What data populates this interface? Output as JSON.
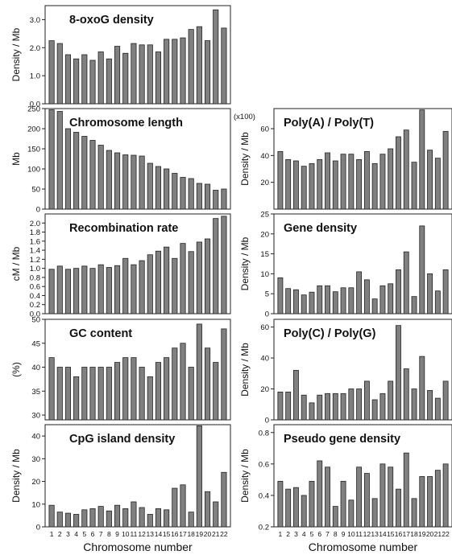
{
  "colors": {
    "bar_fill": "#808080",
    "bar_stroke": "#222222",
    "frame": "#222222",
    "text": "#111111"
  },
  "chart_data": [
    {
      "id": "oxog",
      "type": "bar",
      "title": "8-oxoG density",
      "ylabel": "Density / Mb",
      "ylim": [
        0,
        3.5
      ],
      "yticks": [
        "0.0",
        "1.0",
        "2.0",
        "3.0"
      ],
      "ytick_values": [
        0,
        1,
        2,
        3
      ],
      "categories": [
        "1",
        "2",
        "3",
        "4",
        "5",
        "6",
        "7",
        "8",
        "9",
        "10",
        "11",
        "12",
        "13",
        "14",
        "15",
        "16",
        "17",
        "18",
        "19",
        "20",
        "21",
        "22"
      ],
      "values": [
        2.25,
        2.15,
        1.75,
        1.6,
        1.75,
        1.55,
        1.85,
        1.6,
        2.05,
        1.8,
        2.15,
        2.1,
        2.1,
        1.85,
        2.3,
        2.3,
        2.35,
        2.65,
        2.75,
        2.25,
        3.35,
        2.7
      ]
    },
    {
      "id": "length",
      "type": "bar",
      "title": "Chromosome length",
      "ylabel": "Mb",
      "ylim": [
        0,
        250
      ],
      "yticks": [
        "0",
        "50",
        "100",
        "150",
        "200",
        "250"
      ],
      "ytick_values": [
        0,
        50,
        100,
        150,
        200,
        250
      ],
      "categories": [
        "1",
        "2",
        "3",
        "4",
        "5",
        "6",
        "7",
        "8",
        "9",
        "10",
        "11",
        "12",
        "13",
        "14",
        "15",
        "16",
        "17",
        "18",
        "19",
        "20",
        "21",
        "22"
      ],
      "values": [
        247,
        243,
        200,
        191,
        181,
        171,
        159,
        146,
        140,
        135,
        134,
        132,
        114,
        106,
        100,
        89,
        79,
        76,
        64,
        62,
        47,
        50
      ]
    },
    {
      "id": "recomb",
      "type": "bar",
      "title": "Recombination rate",
      "ylabel": "cM / Mb",
      "ylim": [
        0,
        2.2
      ],
      "yticks": [
        "0.0",
        "0.2",
        "0.4",
        "0.6",
        "0.8",
        "1.0",
        "1.2",
        "1.4",
        "1.6",
        "1.8",
        "2.0"
      ],
      "ytick_values": [
        0,
        0.2,
        0.4,
        0.6,
        0.8,
        1.0,
        1.2,
        1.4,
        1.6,
        1.8,
        2.0
      ],
      "categories": [
        "1",
        "2",
        "3",
        "4",
        "5",
        "6",
        "7",
        "8",
        "9",
        "10",
        "11",
        "12",
        "13",
        "14",
        "15",
        "16",
        "17",
        "18",
        "19",
        "20",
        "21",
        "22"
      ],
      "values": [
        0.98,
        1.05,
        0.98,
        1.0,
        1.05,
        1.0,
        1.08,
        1.02,
        1.06,
        1.22,
        1.08,
        1.17,
        1.3,
        1.38,
        1.47,
        1.22,
        1.55,
        1.37,
        1.58,
        1.65,
        2.1,
        2.15
      ]
    },
    {
      "id": "gc",
      "type": "bar",
      "title": "GC content",
      "ylabel": "(%)",
      "ylim": [
        29,
        50
      ],
      "yticks": [
        "30",
        "35",
        "40",
        "45",
        "50"
      ],
      "ytick_values": [
        30,
        35,
        40,
        45,
        50
      ],
      "categories": [
        "1",
        "2",
        "3",
        "4",
        "5",
        "6",
        "7",
        "8",
        "9",
        "10",
        "11",
        "12",
        "13",
        "14",
        "15",
        "16",
        "17",
        "18",
        "19",
        "20",
        "21",
        "22"
      ],
      "values": [
        42,
        40,
        40,
        38,
        40,
        40,
        40,
        40,
        41,
        42,
        42,
        40,
        38,
        41,
        42,
        44,
        45,
        40,
        49,
        44,
        41,
        48
      ]
    },
    {
      "id": "cpg",
      "type": "bar",
      "title": "CpG island density",
      "ylabel": "Density / Mb",
      "ylim": [
        0,
        45
      ],
      "yticks": [
        "0",
        "10",
        "20",
        "30",
        "40"
      ],
      "ytick_values": [
        0,
        10,
        20,
        30,
        40
      ],
      "categories": [
        "1",
        "2",
        "3",
        "4",
        "5",
        "6",
        "7",
        "8",
        "9",
        "10",
        "11",
        "12",
        "13",
        "14",
        "15",
        "16",
        "17",
        "18",
        "19",
        "20",
        "21",
        "22"
      ],
      "values": [
        9.5,
        6.5,
        6,
        5.5,
        7.5,
        8,
        9,
        7,
        9.5,
        8,
        11,
        8.5,
        5.5,
        8,
        7.5,
        17,
        18.5,
        6.5,
        44.5,
        15.5,
        11,
        24
      ]
    },
    {
      "id": "polyat",
      "type": "bar",
      "title": "Poly(A) / Poly(T)",
      "ylabel": "Density / Mb",
      "ylim": [
        0,
        75
      ],
      "scale_note": "(x100)",
      "yticks": [
        "20",
        "40",
        "60"
      ],
      "ytick_values": [
        20,
        40,
        60
      ],
      "categories": [
        "1",
        "2",
        "3",
        "4",
        "5",
        "6",
        "7",
        "8",
        "9",
        "10",
        "11",
        "12",
        "13",
        "14",
        "15",
        "16",
        "17",
        "18",
        "19",
        "20",
        "21",
        "22"
      ],
      "values": [
        43,
        37,
        36,
        32,
        34,
        37,
        42,
        36,
        41,
        41,
        37,
        43,
        34,
        41,
        45,
        54,
        59,
        35,
        74,
        44,
        38,
        58
      ]
    },
    {
      "id": "gene",
      "type": "bar",
      "title": "Gene density",
      "ylabel": "Density / Mb",
      "ylim": [
        0,
        25
      ],
      "yticks": [
        "0",
        "5",
        "10",
        "15",
        "20",
        "25"
      ],
      "ytick_values": [
        0,
        5,
        10,
        15,
        20,
        25
      ],
      "categories": [
        "1",
        "2",
        "3",
        "4",
        "5",
        "6",
        "7",
        "8",
        "9",
        "10",
        "11",
        "12",
        "13",
        "14",
        "15",
        "16",
        "17",
        "18",
        "19",
        "20",
        "21",
        "22"
      ],
      "values": [
        9,
        6.3,
        6,
        4.7,
        5.4,
        7,
        7,
        5.5,
        6.5,
        6.5,
        10.5,
        8.5,
        3.7,
        7,
        7.5,
        11,
        15.5,
        4.3,
        22,
        10,
        5.7,
        11
      ]
    },
    {
      "id": "polycg",
      "type": "bar",
      "title": "Poly(C) / Poly(G)",
      "ylabel": "Density / Mb",
      "ylim": [
        0,
        65
      ],
      "yticks": [
        "0",
        "20",
        "40",
        "60"
      ],
      "ytick_values": [
        0,
        20,
        40,
        60
      ],
      "categories": [
        "1",
        "2",
        "3",
        "4",
        "5",
        "6",
        "7",
        "8",
        "9",
        "10",
        "11",
        "12",
        "13",
        "14",
        "15",
        "16",
        "17",
        "18",
        "19",
        "20",
        "21",
        "22"
      ],
      "values": [
        18,
        18,
        32,
        16,
        11,
        16,
        17,
        17,
        17,
        20,
        20,
        25,
        13,
        17,
        25,
        61,
        33,
        20,
        41,
        19,
        14,
        25
      ]
    },
    {
      "id": "pseudo",
      "type": "bar",
      "title": "Pseudo gene density",
      "ylabel": "Density / Mb",
      "ylim": [
        0.2,
        0.85
      ],
      "yticks": [
        "0.2",
        "0.4",
        "0.6",
        "0.8"
      ],
      "ytick_values": [
        0.2,
        0.4,
        0.6,
        0.8
      ],
      "categories": [
        "1",
        "2",
        "3",
        "4",
        "5",
        "6",
        "7",
        "8",
        "9",
        "10",
        "11",
        "12",
        "13",
        "14",
        "15",
        "16",
        "17",
        "18",
        "19",
        "20",
        "21",
        "22"
      ],
      "values": [
        0.49,
        0.44,
        0.45,
        0.4,
        0.49,
        0.62,
        0.58,
        0.33,
        0.49,
        0.37,
        0.58,
        0.54,
        0.38,
        0.6,
        0.58,
        0.44,
        0.67,
        0.38,
        0.52,
        0.52,
        0.56,
        0.6
      ]
    }
  ],
  "xlabels": {
    "left": "Chromosome number",
    "right": "Chromosome number"
  },
  "x_tick_labels": [
    "1",
    "2",
    "3",
    "4",
    "5",
    "6",
    "7",
    "8",
    "9",
    "10",
    "11",
    "12",
    "13",
    "14",
    "15",
    "16",
    "17",
    "18",
    "19",
    "20",
    "21",
    "22"
  ]
}
